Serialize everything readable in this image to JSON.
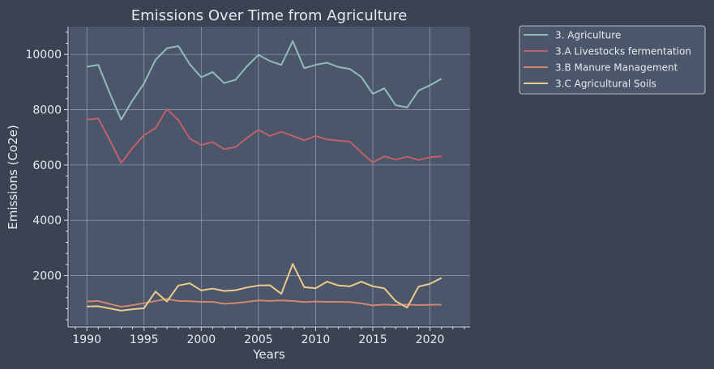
{
  "chart_data": {
    "type": "line",
    "title": "Emissions Over Time from Agriculture",
    "xlabel": "Years",
    "ylabel": "Emissions (Co2e)",
    "xlim": [
      1988.5,
      2023.5
    ],
    "ylim": [
      200,
      11000
    ],
    "x_ticks": [
      1990,
      1995,
      2000,
      2005,
      2010,
      2015,
      2020
    ],
    "y_ticks": [
      2000,
      4000,
      6000,
      8000,
      10000
    ],
    "grid": true,
    "legend_position": "outside top-right",
    "x": [
      1990,
      1991,
      1992,
      1993,
      1994,
      1995,
      1996,
      1997,
      1998,
      1999,
      2000,
      2001,
      2002,
      2003,
      2004,
      2005,
      2006,
      2007,
      2008,
      2009,
      2010,
      2011,
      2012,
      2013,
      2014,
      2015,
      2016,
      2017,
      2018,
      2019,
      2020,
      2021
    ],
    "series": [
      {
        "name": "3. Agriculture",
        "color": "#8fbcbb",
        "values": [
          9550,
          9620,
          8600,
          7640,
          8340,
          8950,
          9800,
          10220,
          10300,
          9640,
          9170,
          9360,
          8960,
          9080,
          9570,
          9980,
          9760,
          9620,
          10480,
          9500,
          9620,
          9700,
          9540,
          9470,
          9180,
          8570,
          8770,
          8160,
          8080,
          8690,
          8880,
          9120
        ]
      },
      {
        "name": "3.A Livestocks fermentation",
        "color": "#bf616a",
        "values": [
          7640,
          7680,
          6900,
          6070,
          6620,
          7080,
          7330,
          8020,
          7620,
          6950,
          6720,
          6830,
          6570,
          6650,
          6980,
          7270,
          7050,
          7200,
          7050,
          6890,
          7050,
          6920,
          6880,
          6840,
          6450,
          6090,
          6310,
          6190,
          6300,
          6180,
          6280,
          6310
        ]
      },
      {
        "name": "3.B Manure Management",
        "color": "#d08770",
        "values": [
          1060,
          1080,
          970,
          870,
          930,
          1000,
          1080,
          1150,
          1080,
          1070,
          1050,
          1050,
          980,
          1000,
          1050,
          1100,
          1080,
          1100,
          1080,
          1040,
          1060,
          1050,
          1050,
          1040,
          990,
          920,
          950,
          930,
          950,
          930,
          940,
          950
        ]
      },
      {
        "name": "3.C Agricultural Soils",
        "color": "#ebcb8b",
        "values": [
          880,
          890,
          810,
          730,
          780,
          820,
          1420,
          1060,
          1640,
          1720,
          1460,
          1530,
          1440,
          1470,
          1570,
          1640,
          1650,
          1340,
          2420,
          1580,
          1540,
          1780,
          1640,
          1610,
          1780,
          1610,
          1540,
          1070,
          840,
          1600,
          1700,
          1910
        ]
      }
    ]
  }
}
